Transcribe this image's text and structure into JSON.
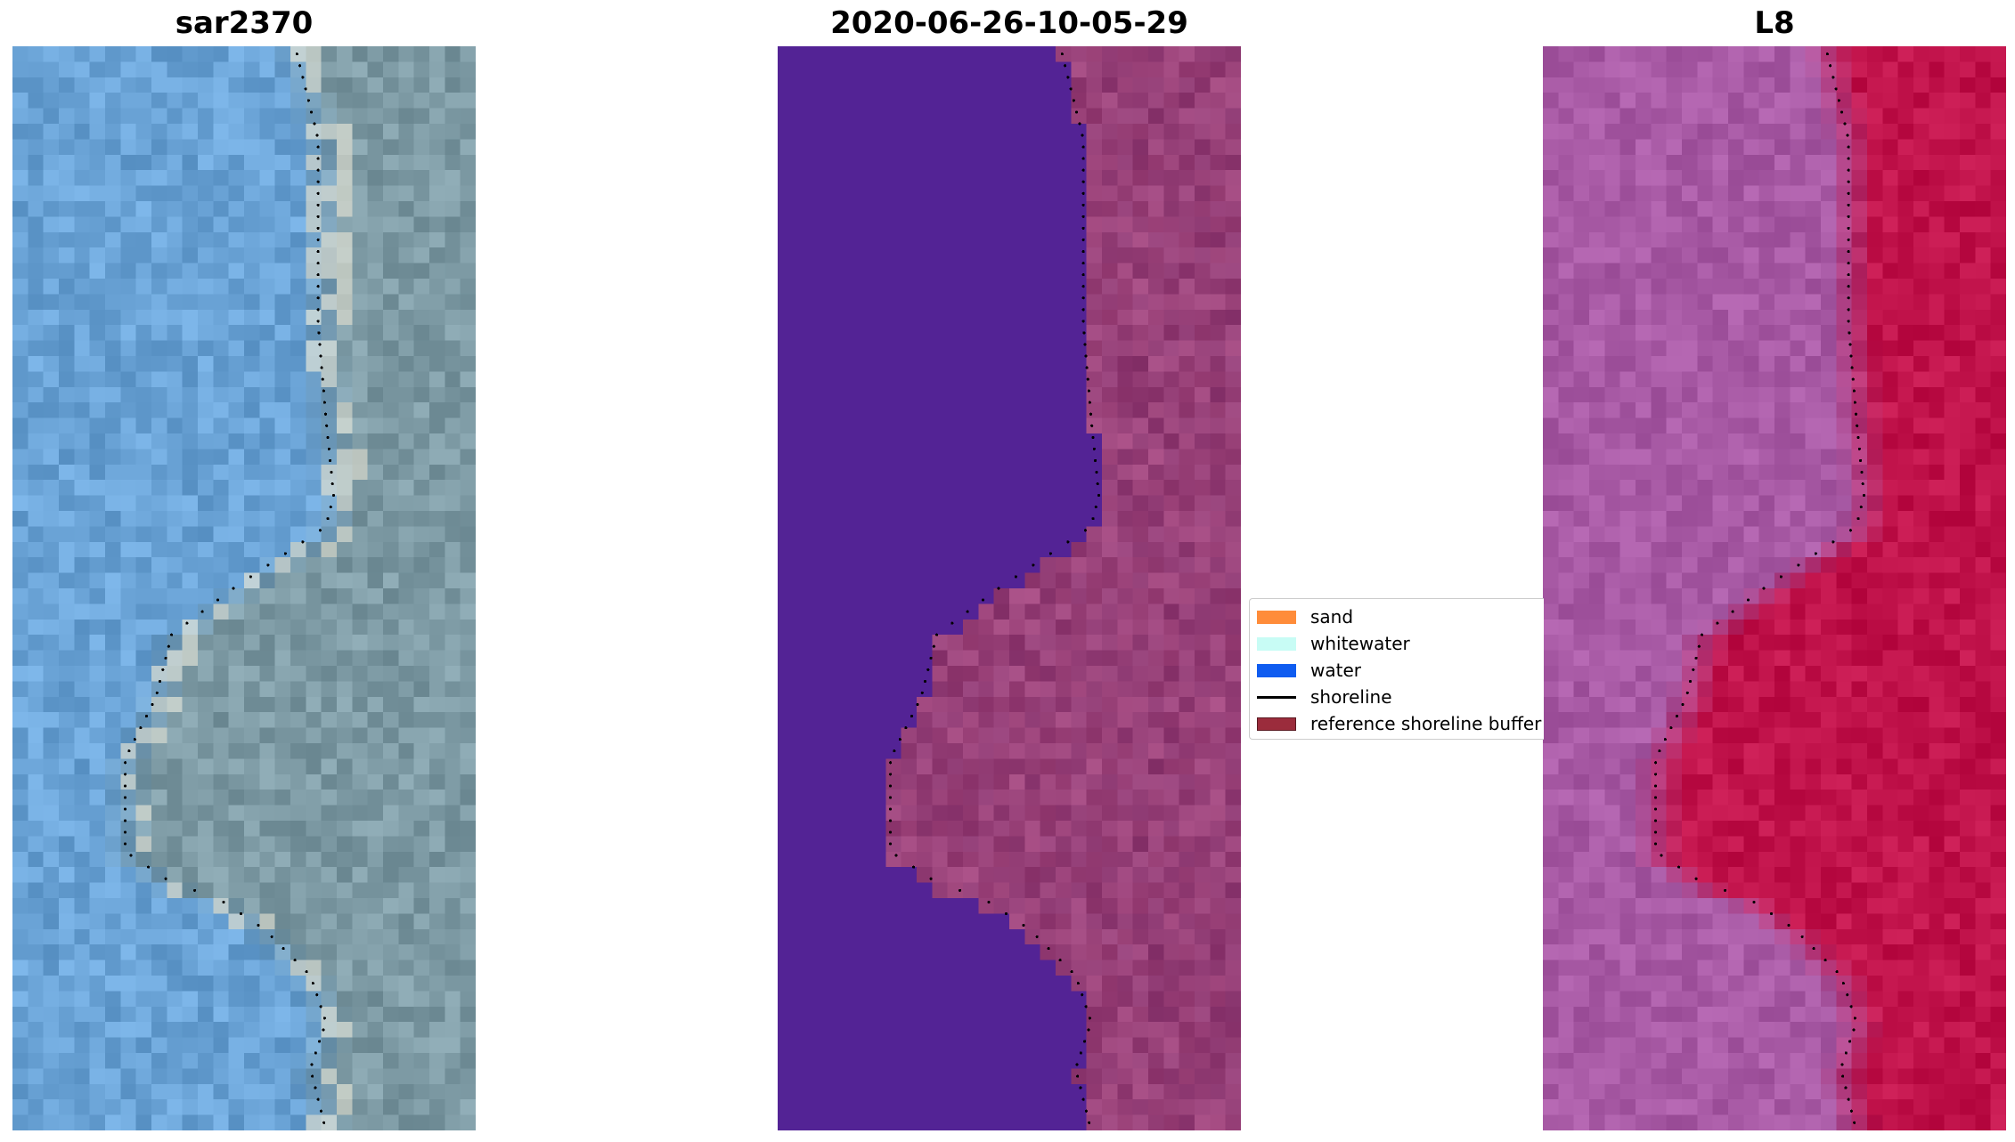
{
  "panels": [
    {
      "title": "sar2370",
      "kind": "rgb"
    },
    {
      "title": "2020-06-26-10-05-29",
      "kind": "classified"
    },
    {
      "title": "L8",
      "kind": "falsecolor"
    }
  ],
  "legend": {
    "items": [
      {
        "label": "sand",
        "color": "#ff8c3a",
        "shape": "patch"
      },
      {
        "label": "whitewater",
        "color": "#c8fcf5",
        "shape": "patch"
      },
      {
        "label": "water",
        "color": "#0f5cf0",
        "shape": "patch"
      },
      {
        "label": "shoreline",
        "color": "#000000",
        "shape": "line"
      },
      {
        "label": "reference shoreline buffer",
        "color": "#9b2c3c",
        "shape": "patch"
      }
    ]
  },
  "colors": {
    "classified_water": "#532395",
    "classified_land": "#8e3a73",
    "rgb_water": "#6aa3d6",
    "rgb_land": "#7d9aa4",
    "falsecolor_water": "#a85aa5",
    "falsecolor_land": "#c0124a"
  }
}
